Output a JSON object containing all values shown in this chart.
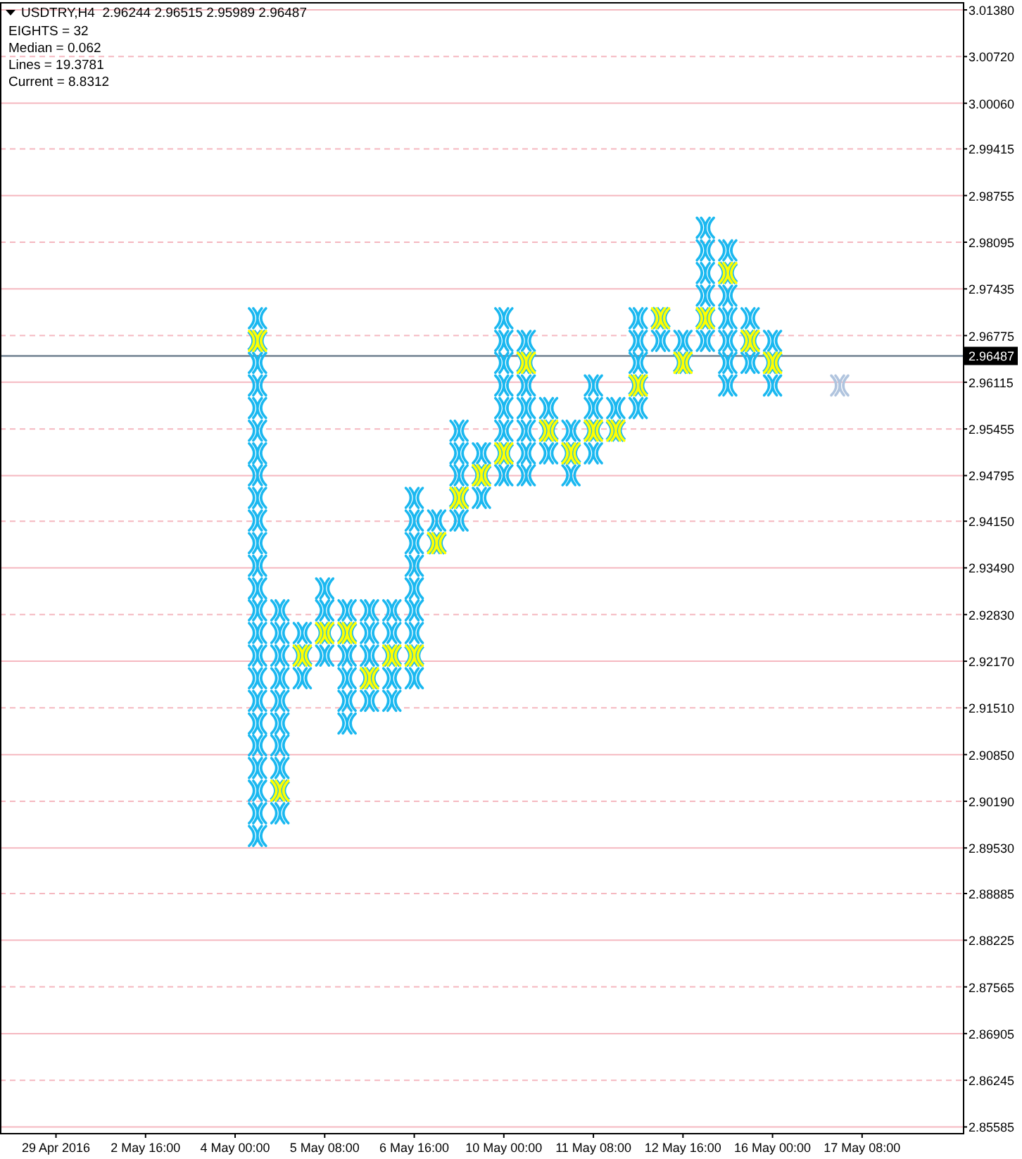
{
  "chart_data": {
    "type": "scatter",
    "title": "USDTRY,H4  2.96244 2.96515 2.95989 2.96487",
    "annotations": [
      "EIGHTS = 32",
      "Median = 0.062",
      "Lines = 19.3781",
      "Current = 8.8312"
    ],
    "grid": "y",
    "marker": "cross",
    "categories": [
      null,
      null,
      "29 Apr 2016",
      null,
      null,
      null,
      "2 May 16:00",
      null,
      null,
      null,
      "4 May 00:00",
      null,
      null,
      null,
      "5 May 08:00",
      null,
      null,
      null,
      "6 May 16:00",
      null,
      null,
      null,
      "10 May 00:00",
      null,
      null,
      null,
      "11 May 08:00",
      null,
      null,
      null,
      "12 May 16:00",
      null,
      null,
      null,
      "16 May 00:00",
      null,
      null,
      null,
      "17 May 08:00",
      null,
      null,
      null,
      null
    ],
    "ylim": [
      2.8549,
      3.0148
    ],
    "yticks": [
      {
        "value": 3.0138,
        "label": "3.01380"
      },
      {
        "value": 3.0072,
        "label": "3.00720"
      },
      {
        "value": 3.0006,
        "label": "3.00060"
      },
      2.99415,
      2.98755,
      2.98095,
      2.97435,
      2.96775,
      2.96115,
      2.95455,
      2.94795,
      {
        "value": 2.9415,
        "label": "2.94150"
      },
      {
        "value": 2.9349,
        "label": "2.93490"
      },
      {
        "value": 2.9283,
        "label": "2.92830"
      },
      {
        "value": 2.9217,
        "label": "2.92170"
      },
      {
        "value": 2.9151,
        "label": "2.91510"
      },
      {
        "value": 2.9085,
        "label": "2.90850"
      },
      {
        "value": 2.9019,
        "label": "2.90190"
      },
      {
        "value": 2.8953,
        "label": "2.89530"
      },
      2.88885,
      2.88225,
      2.87565,
      2.86905,
      2.86245,
      2.85585
    ],
    "ref_lines": [
      {
        "axis": "y",
        "value": 2.96487,
        "label": "2.96487",
        "color": "#708090"
      }
    ],
    "series": [
      {
        "color": "#1ab8f0",
        "values": [
          null,
          null,
          null,
          null,
          null,
          null,
          null,
          null,
          null,
          null,
          null,
          2.897,
          2.9002,
          2.9193,
          2.9225,
          2.9129,
          2.9161,
          2.9161,
          2.9193,
          null,
          2.9416,
          2.9448,
          2.948,
          2.948,
          2.9511,
          2.948,
          2.9511,
          null,
          2.9575,
          2.967,
          null,
          2.967,
          2.9607,
          2.9639,
          2.9607,
          null,
          null,
          null,
          null,
          null,
          null,
          null,
          null
        ]
      },
      {
        "color": "#1ab8f0",
        "values": [
          null,
          null,
          null,
          null,
          null,
          null,
          null,
          null,
          null,
          null,
          null,
          2.9002,
          null,
          null,
          null,
          2.9161,
          null,
          2.9193,
          null,
          2.9416,
          null,
          null,
          null,
          2.9511,
          null,
          null,
          null,
          2.9575,
          null,
          null,
          2.967,
          null,
          2.9639,
          null,
          null,
          null,
          null,
          null,
          null,
          null,
          null,
          null,
          null
        ]
      },
      {
        "color": "#1ab8f0",
        "values": [
          null,
          null,
          null,
          null,
          null,
          null,
          null,
          null,
          null,
          null,
          null,
          2.9034,
          2.9066,
          2.9257,
          2.9289,
          2.9193,
          2.9225,
          null,
          2.9257,
          null,
          2.948,
          2.9511,
          2.9543,
          2.9543,
          2.9575,
          2.9543,
          2.9575,
          null,
          2.9639,
          null,
          null,
          2.9734,
          2.967,
          2.9702,
          2.967,
          null,
          null,
          null,
          null,
          null,
          null,
          null,
          null
        ]
      },
      {
        "color": "#1ab8f0",
        "values": [
          null,
          null,
          null,
          null,
          null,
          null,
          null,
          null,
          null,
          null,
          null,
          2.9066,
          2.9098,
          null,
          2.932,
          2.9225,
          2.9257,
          2.9257,
          2.9289,
          null,
          2.9511,
          null,
          2.9575,
          2.9575,
          null,
          null,
          2.9607,
          null,
          2.967,
          null,
          null,
          2.9766,
          2.9702,
          null,
          null,
          null,
          null,
          null,
          null,
          null,
          null,
          null,
          null
        ]
      },
      {
        "color": "#1ab8f0",
        "values": [
          null,
          null,
          null,
          null,
          null,
          null,
          null,
          null,
          null,
          null,
          null,
          2.9098,
          2.9129,
          null,
          null,
          null,
          2.9289,
          2.9289,
          2.932,
          null,
          2.9543,
          null,
          2.9607,
          2.9607,
          null,
          null,
          null,
          null,
          2.9702,
          null,
          null,
          2.9798,
          2.9734,
          null,
          null,
          null,
          null,
          null,
          null,
          null,
          null,
          null,
          null
        ]
      },
      {
        "color": "#1ab8f0",
        "values": [
          null,
          null,
          null,
          null,
          null,
          null,
          null,
          null,
          null,
          null,
          null,
          2.9129,
          2.9161,
          null,
          null,
          2.9289,
          null,
          null,
          2.9352,
          null,
          null,
          null,
          2.9639,
          null,
          null,
          null,
          null,
          null,
          null,
          null,
          null,
          2.983,
          null,
          null,
          null,
          null,
          null,
          null,
          null,
          null,
          null,
          null,
          null
        ]
      },
      {
        "color": "#1ab8f0",
        "values": [
          null,
          null,
          null,
          null,
          null,
          null,
          null,
          null,
          null,
          null,
          null,
          2.9161,
          2.9193,
          null,
          null,
          null,
          null,
          null,
          2.9384,
          null,
          null,
          null,
          2.967,
          2.967,
          null,
          null,
          null,
          null,
          null,
          null,
          null,
          null,
          2.9798,
          null,
          null,
          null,
          null,
          null,
          null,
          null,
          null,
          null,
          null
        ]
      },
      {
        "color": "#1ab8f0",
        "values": [
          null,
          null,
          null,
          null,
          null,
          null,
          null,
          null,
          null,
          null,
          null,
          2.9193,
          2.9225,
          null,
          null,
          null,
          null,
          null,
          2.9416,
          null,
          null,
          null,
          2.9702,
          null,
          null,
          null,
          null,
          null,
          null,
          null,
          null,
          null,
          null,
          null,
          null,
          null,
          null,
          null,
          null,
          null,
          null,
          null,
          null
        ]
      },
      {
        "color": "#1ab8f0",
        "values": [
          null,
          null,
          null,
          null,
          null,
          null,
          null,
          null,
          null,
          null,
          null,
          2.9225,
          2.9257,
          null,
          null,
          null,
          null,
          null,
          2.9448,
          null,
          null,
          null,
          null,
          null,
          null,
          null,
          null,
          null,
          null,
          null,
          null,
          null,
          null,
          null,
          null,
          null,
          null,
          null,
          null,
          null,
          null,
          null,
          null
        ]
      },
      {
        "color": "#1ab8f0",
        "values": [
          null,
          null,
          null,
          null,
          null,
          null,
          null,
          null,
          null,
          null,
          null,
          2.9257,
          2.9289,
          null,
          null,
          null,
          null,
          null,
          null,
          null,
          null,
          null,
          null,
          null,
          null,
          null,
          null,
          null,
          null,
          null,
          null,
          null,
          null,
          null,
          null,
          null,
          null,
          null,
          null,
          null,
          null,
          null,
          null
        ]
      },
      {
        "color": "#1ab8f0",
        "values": [
          null,
          null,
          null,
          null,
          null,
          null,
          null,
          null,
          null,
          null,
          null,
          2.9289,
          null,
          null,
          null,
          null,
          null,
          null,
          null,
          null,
          null,
          null,
          null,
          null,
          null,
          null,
          null,
          null,
          null,
          null,
          null,
          null,
          null,
          null,
          null,
          null,
          null,
          null,
          null,
          null,
          null,
          null,
          null
        ]
      },
      {
        "color": "#1ab8f0",
        "values": [
          null,
          null,
          null,
          null,
          null,
          null,
          null,
          null,
          null,
          null,
          null,
          2.932,
          null,
          null,
          null,
          null,
          null,
          null,
          null,
          null,
          null,
          null,
          null,
          null,
          null,
          null,
          null,
          null,
          null,
          null,
          null,
          null,
          null,
          null,
          null,
          null,
          null,
          null,
          null,
          null,
          null,
          null,
          null
        ]
      },
      {
        "color": "#1ab8f0",
        "values": [
          null,
          null,
          null,
          null,
          null,
          null,
          null,
          null,
          null,
          null,
          null,
          2.9352,
          null,
          null,
          null,
          null,
          null,
          null,
          null,
          null,
          null,
          null,
          null,
          null,
          null,
          null,
          null,
          null,
          null,
          null,
          null,
          null,
          null,
          null,
          null,
          null,
          null,
          null,
          null,
          null,
          null,
          null,
          null
        ]
      },
      {
        "color": "#1ab8f0",
        "values": [
          null,
          null,
          null,
          null,
          null,
          null,
          null,
          null,
          null,
          null,
          null,
          2.9384,
          null,
          null,
          null,
          null,
          null,
          null,
          null,
          null,
          null,
          null,
          null,
          null,
          null,
          null,
          null,
          null,
          null,
          null,
          null,
          null,
          null,
          null,
          null,
          null,
          null,
          null,
          null,
          null,
          null,
          null,
          null
        ]
      },
      {
        "color": "#1ab8f0",
        "values": [
          null,
          null,
          null,
          null,
          null,
          null,
          null,
          null,
          null,
          null,
          null,
          2.9416,
          null,
          null,
          null,
          null,
          null,
          null,
          null,
          null,
          null,
          null,
          null,
          null,
          null,
          null,
          null,
          null,
          null,
          null,
          null,
          null,
          null,
          null,
          null,
          null,
          null,
          null,
          null,
          null,
          null,
          null,
          null
        ]
      },
      {
        "color": "#1ab8f0",
        "values": [
          null,
          null,
          null,
          null,
          null,
          null,
          null,
          null,
          null,
          null,
          null,
          2.9448,
          null,
          null,
          null,
          null,
          null,
          null,
          null,
          null,
          null,
          null,
          null,
          null,
          null,
          null,
          null,
          null,
          null,
          null,
          null,
          null,
          null,
          null,
          null,
          null,
          null,
          null,
          null,
          null,
          null,
          null,
          null
        ]
      },
      {
        "color": "#1ab8f0",
        "values": [
          null,
          null,
          null,
          null,
          null,
          null,
          null,
          null,
          null,
          null,
          null,
          2.948,
          null,
          null,
          null,
          null,
          null,
          null,
          null,
          null,
          null,
          null,
          null,
          null,
          null,
          null,
          null,
          null,
          null,
          null,
          null,
          null,
          null,
          null,
          null,
          null,
          null,
          null,
          null,
          null,
          null,
          null,
          null
        ]
      },
      {
        "color": "#1ab8f0",
        "values": [
          null,
          null,
          null,
          null,
          null,
          null,
          null,
          null,
          null,
          null,
          null,
          2.9511,
          null,
          null,
          null,
          null,
          null,
          null,
          null,
          null,
          null,
          null,
          null,
          null,
          null,
          null,
          null,
          null,
          null,
          null,
          null,
          null,
          null,
          null,
          null,
          null,
          null,
          null,
          null,
          null,
          null,
          null,
          null
        ]
      },
      {
        "color": "#1ab8f0",
        "values": [
          null,
          null,
          null,
          null,
          null,
          null,
          null,
          null,
          null,
          null,
          null,
          2.9543,
          null,
          null,
          null,
          null,
          null,
          null,
          null,
          null,
          null,
          null,
          null,
          null,
          null,
          null,
          null,
          null,
          null,
          null,
          null,
          null,
          null,
          null,
          null,
          null,
          null,
          null,
          null,
          null,
          null,
          null,
          null
        ]
      },
      {
        "color": "#1ab8f0",
        "values": [
          null,
          null,
          null,
          null,
          null,
          null,
          null,
          null,
          null,
          null,
          null,
          2.9575,
          null,
          null,
          null,
          null,
          null,
          null,
          null,
          null,
          null,
          null,
          null,
          null,
          null,
          null,
          null,
          null,
          null,
          null,
          null,
          null,
          null,
          null,
          null,
          null,
          null,
          null,
          null,
          null,
          null,
          null,
          null
        ]
      },
      {
        "color": "#1ab8f0",
        "values": [
          null,
          null,
          null,
          null,
          null,
          null,
          null,
          null,
          null,
          null,
          null,
          2.9607,
          null,
          null,
          null,
          null,
          null,
          null,
          null,
          null,
          null,
          null,
          null,
          null,
          null,
          null,
          null,
          null,
          null,
          null,
          null,
          null,
          null,
          null,
          null,
          null,
          null,
          null,
          null,
          null,
          null,
          null,
          null
        ]
      },
      {
        "color": "#1ab8f0",
        "values": [
          null,
          null,
          null,
          null,
          null,
          null,
          null,
          null,
          null,
          null,
          null,
          2.9639,
          null,
          null,
          null,
          null,
          null,
          null,
          null,
          null,
          null,
          null,
          null,
          null,
          null,
          null,
          null,
          null,
          null,
          null,
          null,
          null,
          null,
          null,
          null,
          null,
          null,
          null,
          null,
          null,
          null,
          null,
          null
        ]
      },
      {
        "color": "#1ab8f0",
        "values": [
          null,
          null,
          null,
          null,
          null,
          null,
          null,
          null,
          null,
          null,
          null,
          2.9702,
          null,
          null,
          null,
          null,
          null,
          null,
          null,
          null,
          null,
          null,
          null,
          null,
          null,
          null,
          null,
          null,
          null,
          null,
          null,
          null,
          null,
          null,
          null,
          null,
          null,
          null,
          null,
          null,
          null,
          null,
          null
        ]
      },
      {
        "color": "#ffff00",
        "values": [
          null,
          null,
          null,
          null,
          null,
          null,
          null,
          null,
          null,
          null,
          null,
          2.967,
          2.9034,
          2.9225,
          2.9257,
          2.9257,
          2.9193,
          2.9225,
          2.9225,
          2.9384,
          2.9448,
          2.948,
          2.9511,
          2.9639,
          2.9543,
          2.9511,
          2.9543,
          2.9543,
          2.9607,
          2.9702,
          2.9639,
          2.9702,
          2.9766,
          2.967,
          2.9639,
          null,
          null,
          null,
          null,
          null,
          null,
          null,
          null
        ]
      },
      {
        "color": "#b0c4de",
        "values": [
          null,
          null,
          null,
          null,
          null,
          null,
          null,
          null,
          null,
          null,
          null,
          null,
          null,
          null,
          null,
          null,
          null,
          null,
          null,
          null,
          null,
          null,
          null,
          null,
          null,
          null,
          null,
          null,
          null,
          null,
          null,
          null,
          null,
          null,
          null,
          null,
          null,
          2.9607,
          null,
          null,
          null,
          null,
          null
        ]
      }
    ]
  }
}
